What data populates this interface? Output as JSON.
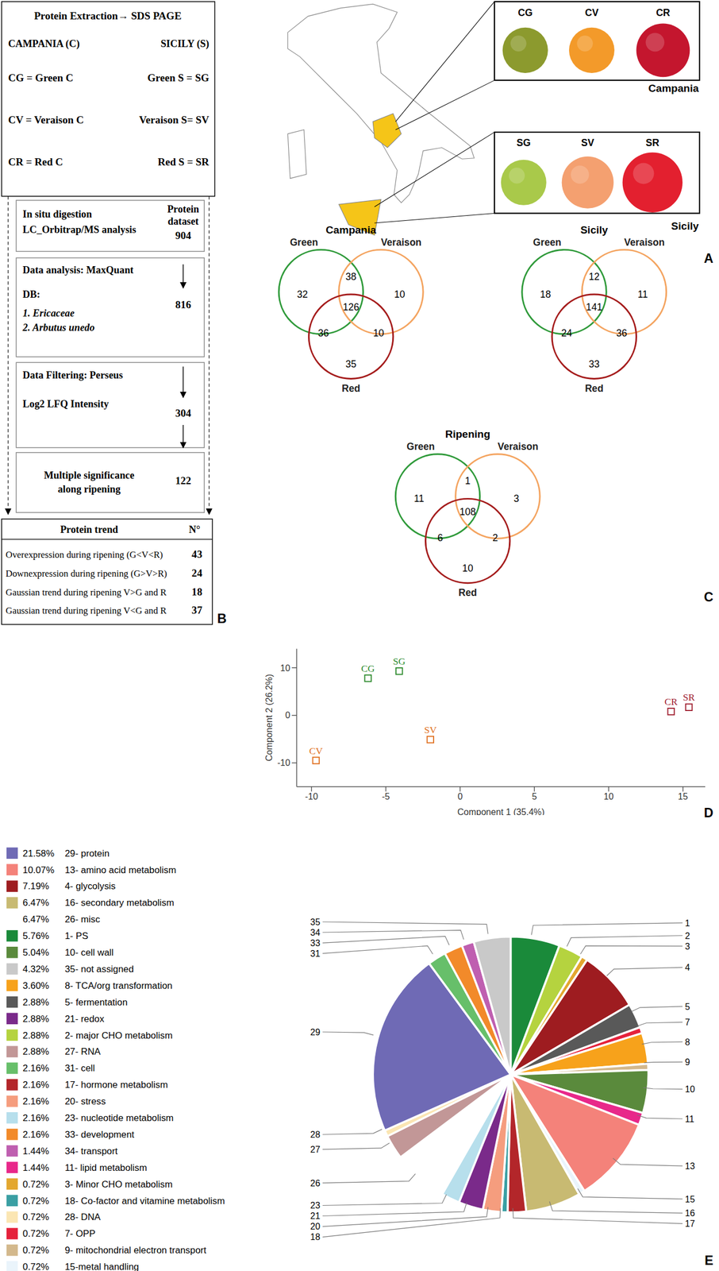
{
  "panel_labels": [
    "A",
    "B",
    "C",
    "D",
    "E"
  ],
  "flowchart": {
    "header": {
      "title": "Protein Extraction→ SDS PAGE",
      "left": "CAMPANIA (C)",
      "right": "SICILY (S)",
      "rows": [
        [
          "CG = Green C",
          "Green S = SG"
        ],
        [
          "CV = Veraison C",
          "Veraison S= SV"
        ],
        [
          "CR = Red C",
          "Red S = SR"
        ]
      ]
    },
    "steps": [
      {
        "lines": [
          "In situ digestion",
          "LC_Orbitrap/MS analysis"
        ],
        "result_label": [
          "Protein",
          "dataset"
        ],
        "result": 904
      },
      {
        "lines": [
          "Data analysis: MaxQuant",
          "DB:",
          "1. Ericaceae",
          "2. Arbutus unedo"
        ],
        "result": 816
      },
      {
        "lines": [
          "Data Filtering: Perseus",
          "Log2 LFQ Intensity"
        ],
        "result": 304
      },
      {
        "lines": [
          "Multiple significance",
          "along ripening"
        ],
        "result": 122
      }
    ]
  },
  "table": {
    "header": [
      "Protein trend",
      "N°"
    ],
    "rows": [
      [
        "Overexpression during ripening (G<V<R)",
        43
      ],
      [
        "Downexpression during ripening (G>V>R)",
        24
      ],
      [
        "Gaussian trend during ripening V>G and R",
        18
      ],
      [
        "Gaussian trend during ripening V<G and R",
        37
      ]
    ]
  },
  "photos": [
    {
      "region": "Campania",
      "samples": [
        "CG",
        "CV",
        "CR"
      ],
      "colors": [
        "#8c9a2e",
        "#f39a2a",
        "#c4162e"
      ]
    },
    {
      "region": "Sicily",
      "samples": [
        "SG",
        "SV",
        "SR"
      ],
      "colors": [
        "#a9c94a",
        "#f4a070",
        "#e3202f"
      ]
    }
  ],
  "venn": [
    {
      "title": "Campania",
      "sets": [
        "Green",
        "Veraison",
        "Red"
      ],
      "colors": [
        "#2f9a3a",
        "#f4a460",
        "#a51c1c"
      ],
      "regions": {
        "G": 32,
        "GV": 38,
        "V": 10,
        "GVR": 126,
        "GR": 36,
        "VR": 10,
        "R": 35
      }
    },
    {
      "title": "Sicily",
      "sets": [
        "Green",
        "Veraison",
        "Red"
      ],
      "colors": [
        "#2f9a3a",
        "#f4a460",
        "#a51c1c"
      ],
      "regions": {
        "G": 18,
        "GV": 12,
        "V": 11,
        "GVR": 141,
        "GR": 24,
        "VR": 36,
        "R": 33
      }
    },
    {
      "title": "Ripening",
      "sets": [
        "Green",
        "Veraison",
        "Red"
      ],
      "colors": [
        "#2f9a3a",
        "#f4a460",
        "#a51c1c"
      ],
      "regions": {
        "G": 11,
        "GV": 1,
        "V": 3,
        "GVR": 108,
        "GR": 6,
        "VR": 2,
        "R": 10
      }
    }
  ],
  "chart_data": [
    {
      "type": "scatter",
      "x_label": "Component 1 (35.4%)",
      "y_label": "Component 2 (26.2%)",
      "labels": [
        "CG",
        "SG",
        "CV",
        "SV",
        "CR",
        "SR"
      ],
      "x": [
        -6.2,
        -4.1,
        -9.7,
        -2.0,
        14.2,
        15.4
      ],
      "values": [
        7.8,
        9.3,
        -9.5,
        -5.1,
        0.8,
        1.7
      ],
      "colors": [
        "#2e8b2e",
        "#2e8b2e",
        "#e07020",
        "#e07020",
        "#a02030",
        "#a02030"
      ],
      "marker": "square",
      "xlim": [
        -11,
        16.5
      ],
      "xticks": [
        -10,
        -5,
        0,
        5,
        10,
        15
      ],
      "ylim": [
        -15,
        14
      ],
      "yticks": [
        -10,
        0,
        10
      ],
      "grid": false
    },
    {
      "type": "pie",
      "categories": [
        "1- PS",
        "2- major CHO metabolism",
        "3- Minor CHO metabolism",
        "4- glycolysis",
        "5- fermentation",
        "7- OPP",
        "8- TCA/org transformation",
        "9- mitochondrial electron transport",
        "10- cell wall",
        "11- lipid metabolism",
        "13- amino acid metabolism",
        "15-metal handling",
        "16- secondary metabolism",
        "17- hormone metabolism",
        "18- Co-factor and vitamine metabolism",
        "20- stress",
        "21- redox",
        "23- nucleotide metabolism",
        "26- misc",
        "27- RNA",
        "28- DNA",
        "29- protein",
        "31- cell",
        "33- development",
        "34- transport",
        "35- not assigned"
      ],
      "slice_labels": [
        "1",
        "2",
        "3",
        "4",
        "5",
        "7",
        "8",
        "9",
        "10",
        "11",
        "13",
        "15",
        "16",
        "17",
        "18",
        "20",
        "21",
        "23",
        "26",
        "27",
        "28",
        "29",
        "31",
        "33",
        "34",
        "35"
      ],
      "values": [
        5.76,
        2.88,
        0.72,
        7.19,
        2.88,
        0.72,
        3.6,
        0.72,
        5.04,
        1.44,
        10.07,
        0.72,
        6.47,
        2.16,
        0.72,
        2.16,
        2.88,
        2.16,
        6.47,
        2.88,
        0.72,
        21.58,
        2.16,
        2.16,
        1.44,
        4.32
      ],
      "value_labels": [
        "5.76%",
        "2.88%",
        "0.72%",
        "7.19%",
        "2.88%",
        "0.72%",
        "3.60%",
        "0.72%",
        "5.04%",
        "1.44%",
        "10.07%",
        "0.72%",
        "6.47%",
        "2.16%",
        "0.72%",
        "2.16%",
        "2.88%",
        "2.16%",
        "6.47%",
        "2.88%",
        "0.72%",
        "21.58%",
        "2.16%",
        "2.16%",
        "1.44%",
        "4.32%"
      ],
      "colors": [
        "#1a8a3a",
        "#b5d33f",
        "#e3a72f",
        "#9e1c20",
        "#595959",
        "#e5213b",
        "#f7a21b",
        "#d3b88c",
        "#5a8a3c",
        "#e8288a",
        "#f4827a",
        "#eaf4fb",
        "#c8ba72",
        "#b3262a",
        "#3a9fa3",
        "#f59d7e",
        "#7a2a8a",
        "#b7dfec",
        "#ffffff",
        "#c29797",
        "#fbe6b3",
        "#6f6ab5",
        "#67bf6a",
        "#f28a2a",
        "#bf5fb0",
        "#c9c9c9"
      ],
      "legend_order": [
        21,
        10,
        3,
        12,
        18,
        0,
        8,
        25,
        6,
        4,
        16,
        1,
        19,
        22,
        13,
        15,
        17,
        23,
        24,
        9,
        2,
        14,
        20,
        5,
        7,
        11
      ]
    }
  ]
}
